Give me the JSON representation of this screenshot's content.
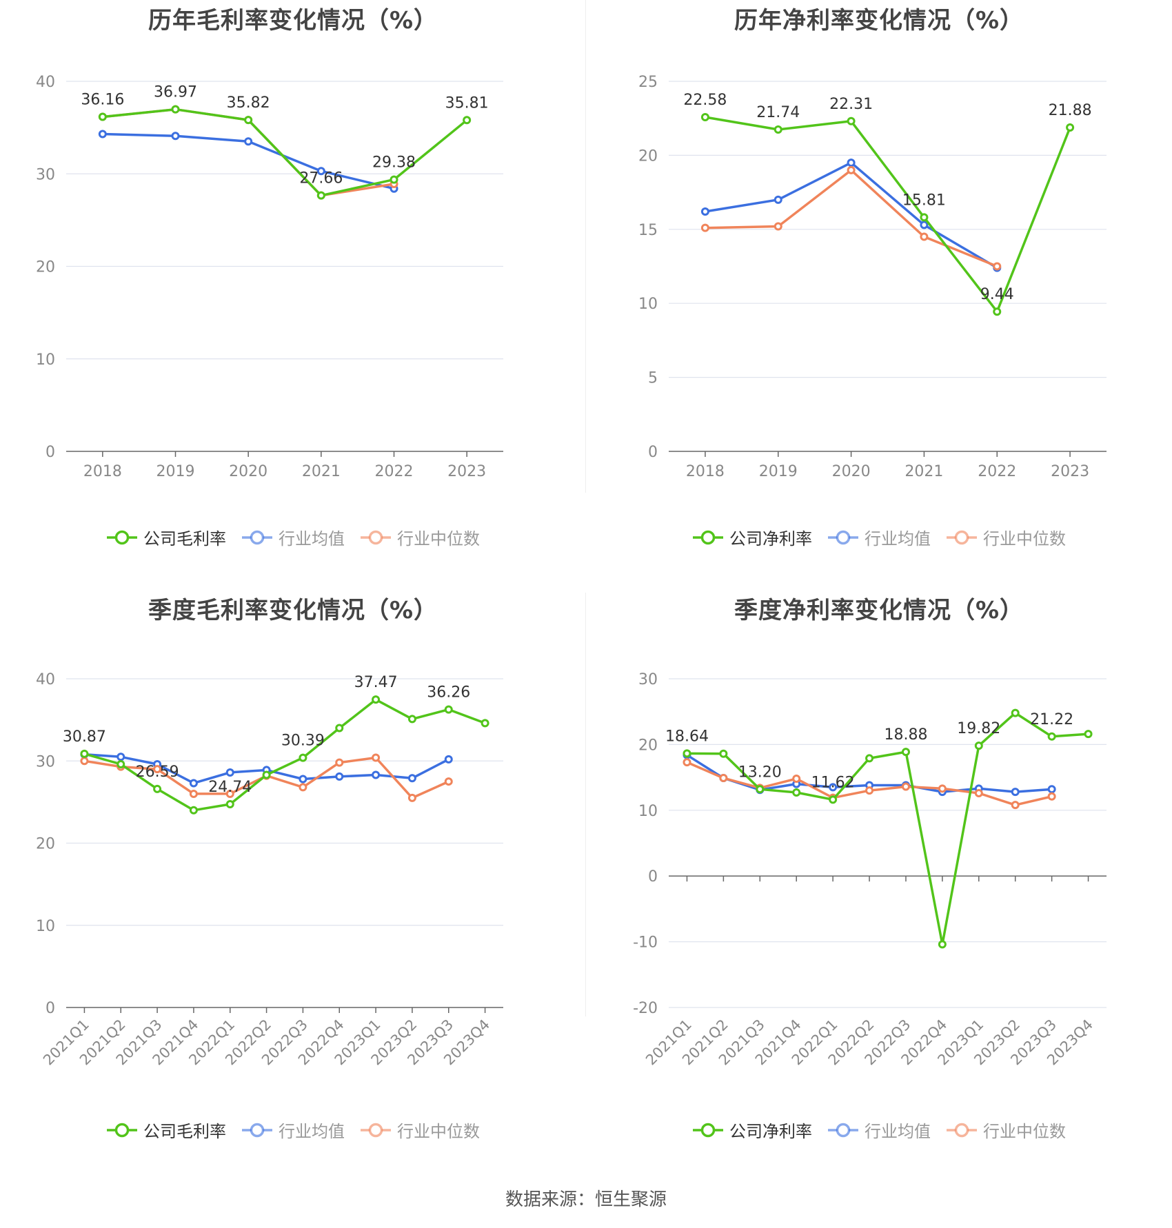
{
  "source": "数据来源：恒生聚源",
  "colors": {
    "company": "#52c41a",
    "avg": "#3b6fe0",
    "median": "#f0845a",
    "grid": "#dfe3ee",
    "axis": "#666666"
  },
  "chart_data": [
    {
      "type": "line",
      "title": "历年毛利率变化情况（%）",
      "categories": [
        "2018",
        "2019",
        "2020",
        "2021",
        "2022",
        "2023"
      ],
      "ylim": [
        0,
        40
      ],
      "yticks": [
        "0",
        "10",
        "20",
        "30",
        "40"
      ],
      "legend": [
        "公司毛利率",
        "行业均值",
        "行业中位数"
      ],
      "series": [
        {
          "name": "公司毛利率",
          "values": [
            36.16,
            36.97,
            35.82,
            27.66,
            29.38,
            35.81
          ],
          "labels": [
            "36.16",
            "36.97",
            "35.82",
            "27.66",
            "29.38",
            "35.81"
          ]
        },
        {
          "name": "行业均值",
          "values": [
            34.3,
            34.1,
            33.5,
            30.3,
            28.4,
            null
          ]
        },
        {
          "name": "行业中位数",
          "values": [
            36.16,
            36.97,
            35.82,
            27.66,
            28.9,
            null
          ]
        }
      ]
    },
    {
      "type": "line",
      "title": "历年净利率变化情况（%）",
      "categories": [
        "2018",
        "2019",
        "2020",
        "2021",
        "2022",
        "2023"
      ],
      "ylim": [
        0,
        25
      ],
      "yticks": [
        "0",
        "5",
        "10",
        "15",
        "20",
        "25"
      ],
      "legend": [
        "公司净利率",
        "行业均值",
        "行业中位数"
      ],
      "series": [
        {
          "name": "公司净利率",
          "values": [
            22.58,
            21.74,
            22.31,
            15.81,
            9.44,
            21.88
          ],
          "labels": [
            "22.58",
            "21.74",
            "22.31",
            "15.81",
            "9.44",
            "21.88"
          ]
        },
        {
          "name": "行业均值",
          "values": [
            16.2,
            17.0,
            19.5,
            15.3,
            12.4,
            null
          ]
        },
        {
          "name": "行业中位数",
          "values": [
            15.1,
            15.2,
            19.0,
            14.5,
            12.5,
            null
          ]
        }
      ]
    },
    {
      "type": "line",
      "title": "季度毛利率变化情况（%）",
      "categories": [
        "2021Q1",
        "2021Q2",
        "2021Q3",
        "2021Q4",
        "2022Q1",
        "2022Q2",
        "2022Q3",
        "2022Q4",
        "2023Q1",
        "2023Q2",
        "2023Q3",
        "2023Q4"
      ],
      "ylim": [
        0,
        40
      ],
      "yticks": [
        "0",
        "10",
        "20",
        "30",
        "40"
      ],
      "legend": [
        "公司毛利率",
        "行业均值",
        "行业中位数"
      ],
      "series": [
        {
          "name": "公司毛利率",
          "values": [
            30.87,
            29.6,
            26.59,
            24.0,
            24.74,
            28.3,
            30.39,
            34.0,
            37.47,
            35.1,
            36.26,
            34.6
          ],
          "labels": [
            "30.87",
            "",
            "26.59",
            "",
            "24.74",
            "",
            "30.39",
            "",
            "37.47",
            "",
            "36.26",
            ""
          ]
        },
        {
          "name": "行业均值",
          "values": [
            30.8,
            30.5,
            29.6,
            27.3,
            28.6,
            28.9,
            27.8,
            28.1,
            28.3,
            27.9,
            30.2,
            null
          ]
        },
        {
          "name": "行业中位数",
          "values": [
            30.0,
            29.3,
            29.0,
            26.0,
            26.0,
            28.2,
            26.8,
            29.8,
            30.4,
            25.5,
            27.5,
            null
          ]
        }
      ]
    },
    {
      "type": "line",
      "title": "季度净利率变化情况（%）",
      "categories": [
        "2021Q1",
        "2021Q2",
        "2021Q3",
        "2021Q4",
        "2022Q1",
        "2022Q2",
        "2022Q3",
        "2022Q4",
        "2023Q1",
        "2023Q2",
        "2023Q3",
        "2023Q4"
      ],
      "ylim": [
        -20,
        30
      ],
      "yticks": [
        "-20",
        "-10",
        "0",
        "10",
        "20",
        "30"
      ],
      "legend": [
        "公司净利率",
        "行业均值",
        "行业中位数"
      ],
      "series": [
        {
          "name": "公司净利率",
          "values": [
            18.64,
            18.6,
            13.2,
            12.7,
            11.62,
            17.9,
            18.88,
            -10.4,
            19.82,
            24.8,
            21.22,
            21.6
          ],
          "labels": [
            "18.64",
            "",
            "13.20",
            "",
            "11.62",
            "",
            "18.88",
            "",
            "19.82",
            "",
            "21.22",
            ""
          ]
        },
        {
          "name": "行业均值",
          "values": [
            18.4,
            14.9,
            13.1,
            14.0,
            13.5,
            13.8,
            13.8,
            12.8,
            13.3,
            12.8,
            13.2,
            null
          ]
        },
        {
          "name": "行业中位数",
          "values": [
            17.3,
            14.9,
            13.4,
            14.8,
            11.9,
            13.0,
            13.6,
            13.3,
            12.6,
            10.8,
            12.1,
            null
          ]
        }
      ]
    }
  ]
}
